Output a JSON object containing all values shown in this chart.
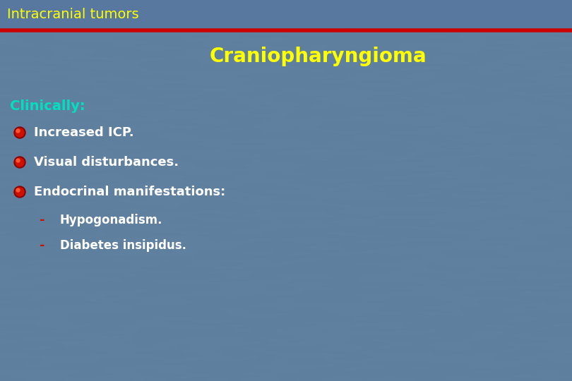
{
  "title_bar_text": "Intracranial tumors",
  "title_bar_bg": "#6080a0",
  "title_bar_text_color": "#ffff00",
  "title_bar_text_size": 14,
  "red_line_color": "#cc0000",
  "main_bg_color": "#6080a0",
  "subtitle": "Craniopharyngioma",
  "subtitle_color": "#ffff00",
  "subtitle_size": 20,
  "clinically_label": "Clinically:",
  "clinically_color": "#00e0c0",
  "clinically_size": 14,
  "bullet_items": [
    "Increased ICP.",
    "Visual disturbances.",
    "Endocrinal manifestations:"
  ],
  "bullet_color": "#ffffff",
  "bullet_size": 13,
  "bullet_dot_color": "#cc1100",
  "sub_items": [
    "Hypogonadism.",
    "Diabetes insipidus."
  ],
  "sub_color": "#ffffff",
  "sub_size": 12,
  "sub_dash_color": "#cc1100",
  "title_bar_height": 42
}
